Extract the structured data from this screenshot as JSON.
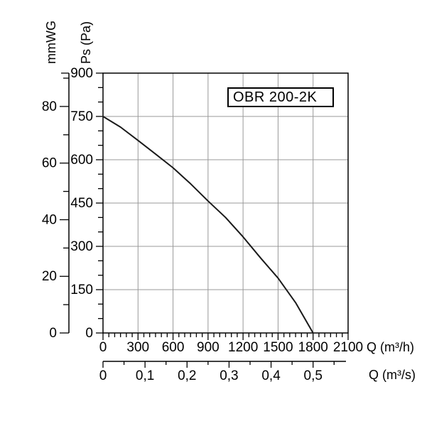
{
  "chart_data": {
    "type": "line",
    "title": "OBR 200-2K",
    "series": [
      {
        "name": "OBR 200-2K fan curve",
        "points": [
          [
            0,
            750
          ],
          [
            150,
            713
          ],
          [
            300,
            667
          ],
          [
            450,
            620
          ],
          [
            600,
            572
          ],
          [
            750,
            517
          ],
          [
            900,
            457
          ],
          [
            1050,
            400
          ],
          [
            1200,
            333
          ],
          [
            1350,
            260
          ],
          [
            1500,
            190
          ],
          [
            1650,
            105
          ],
          [
            1800,
            0
          ]
        ]
      }
    ],
    "axes": {
      "ps": {
        "title": "Ps (Pa)",
        "min": 0,
        "max": 900,
        "major_ticks": [
          0,
          150,
          300,
          450,
          600,
          750,
          900
        ],
        "minor_step": 50
      },
      "mmwg": {
        "title": "mmWG",
        "major_ticks": [
          0,
          20,
          40,
          60,
          80
        ],
        "minor_ticks": [
          10,
          30,
          50,
          70,
          90
        ],
        "pa_per_unit": 9.80665
      },
      "q_m3h": {
        "title": "Q (m³/h)",
        "min": 0,
        "max": 2100,
        "major_ticks": [
          0,
          300,
          600,
          900,
          1200,
          1500,
          1800,
          2100
        ],
        "minor_step": 50
      },
      "q_m3s": {
        "title": "Q (m³/s)",
        "major_ticks": [
          {
            "v": 0.0,
            "label": "0"
          },
          {
            "v": 0.1,
            "label": "0,1"
          },
          {
            "v": 0.2,
            "label": "0,2"
          },
          {
            "v": 0.3,
            "label": "0,3"
          },
          {
            "v": 0.4,
            "label": "0,4"
          },
          {
            "v": 0.5,
            "label": "0,5"
          }
        ],
        "minor_ticks": [
          0.05,
          0.15,
          0.25,
          0.35,
          0.45,
          0.55
        ]
      }
    },
    "grid": {
      "x_lines": [
        300,
        600,
        900,
        1200,
        1500,
        1800
      ],
      "y_lines": [
        150,
        300,
        450,
        600,
        750
      ]
    },
    "legend_position": "none",
    "colors": {
      "grid": "#999999",
      "axis": "#000000",
      "curve": "#1a1a1a"
    }
  }
}
